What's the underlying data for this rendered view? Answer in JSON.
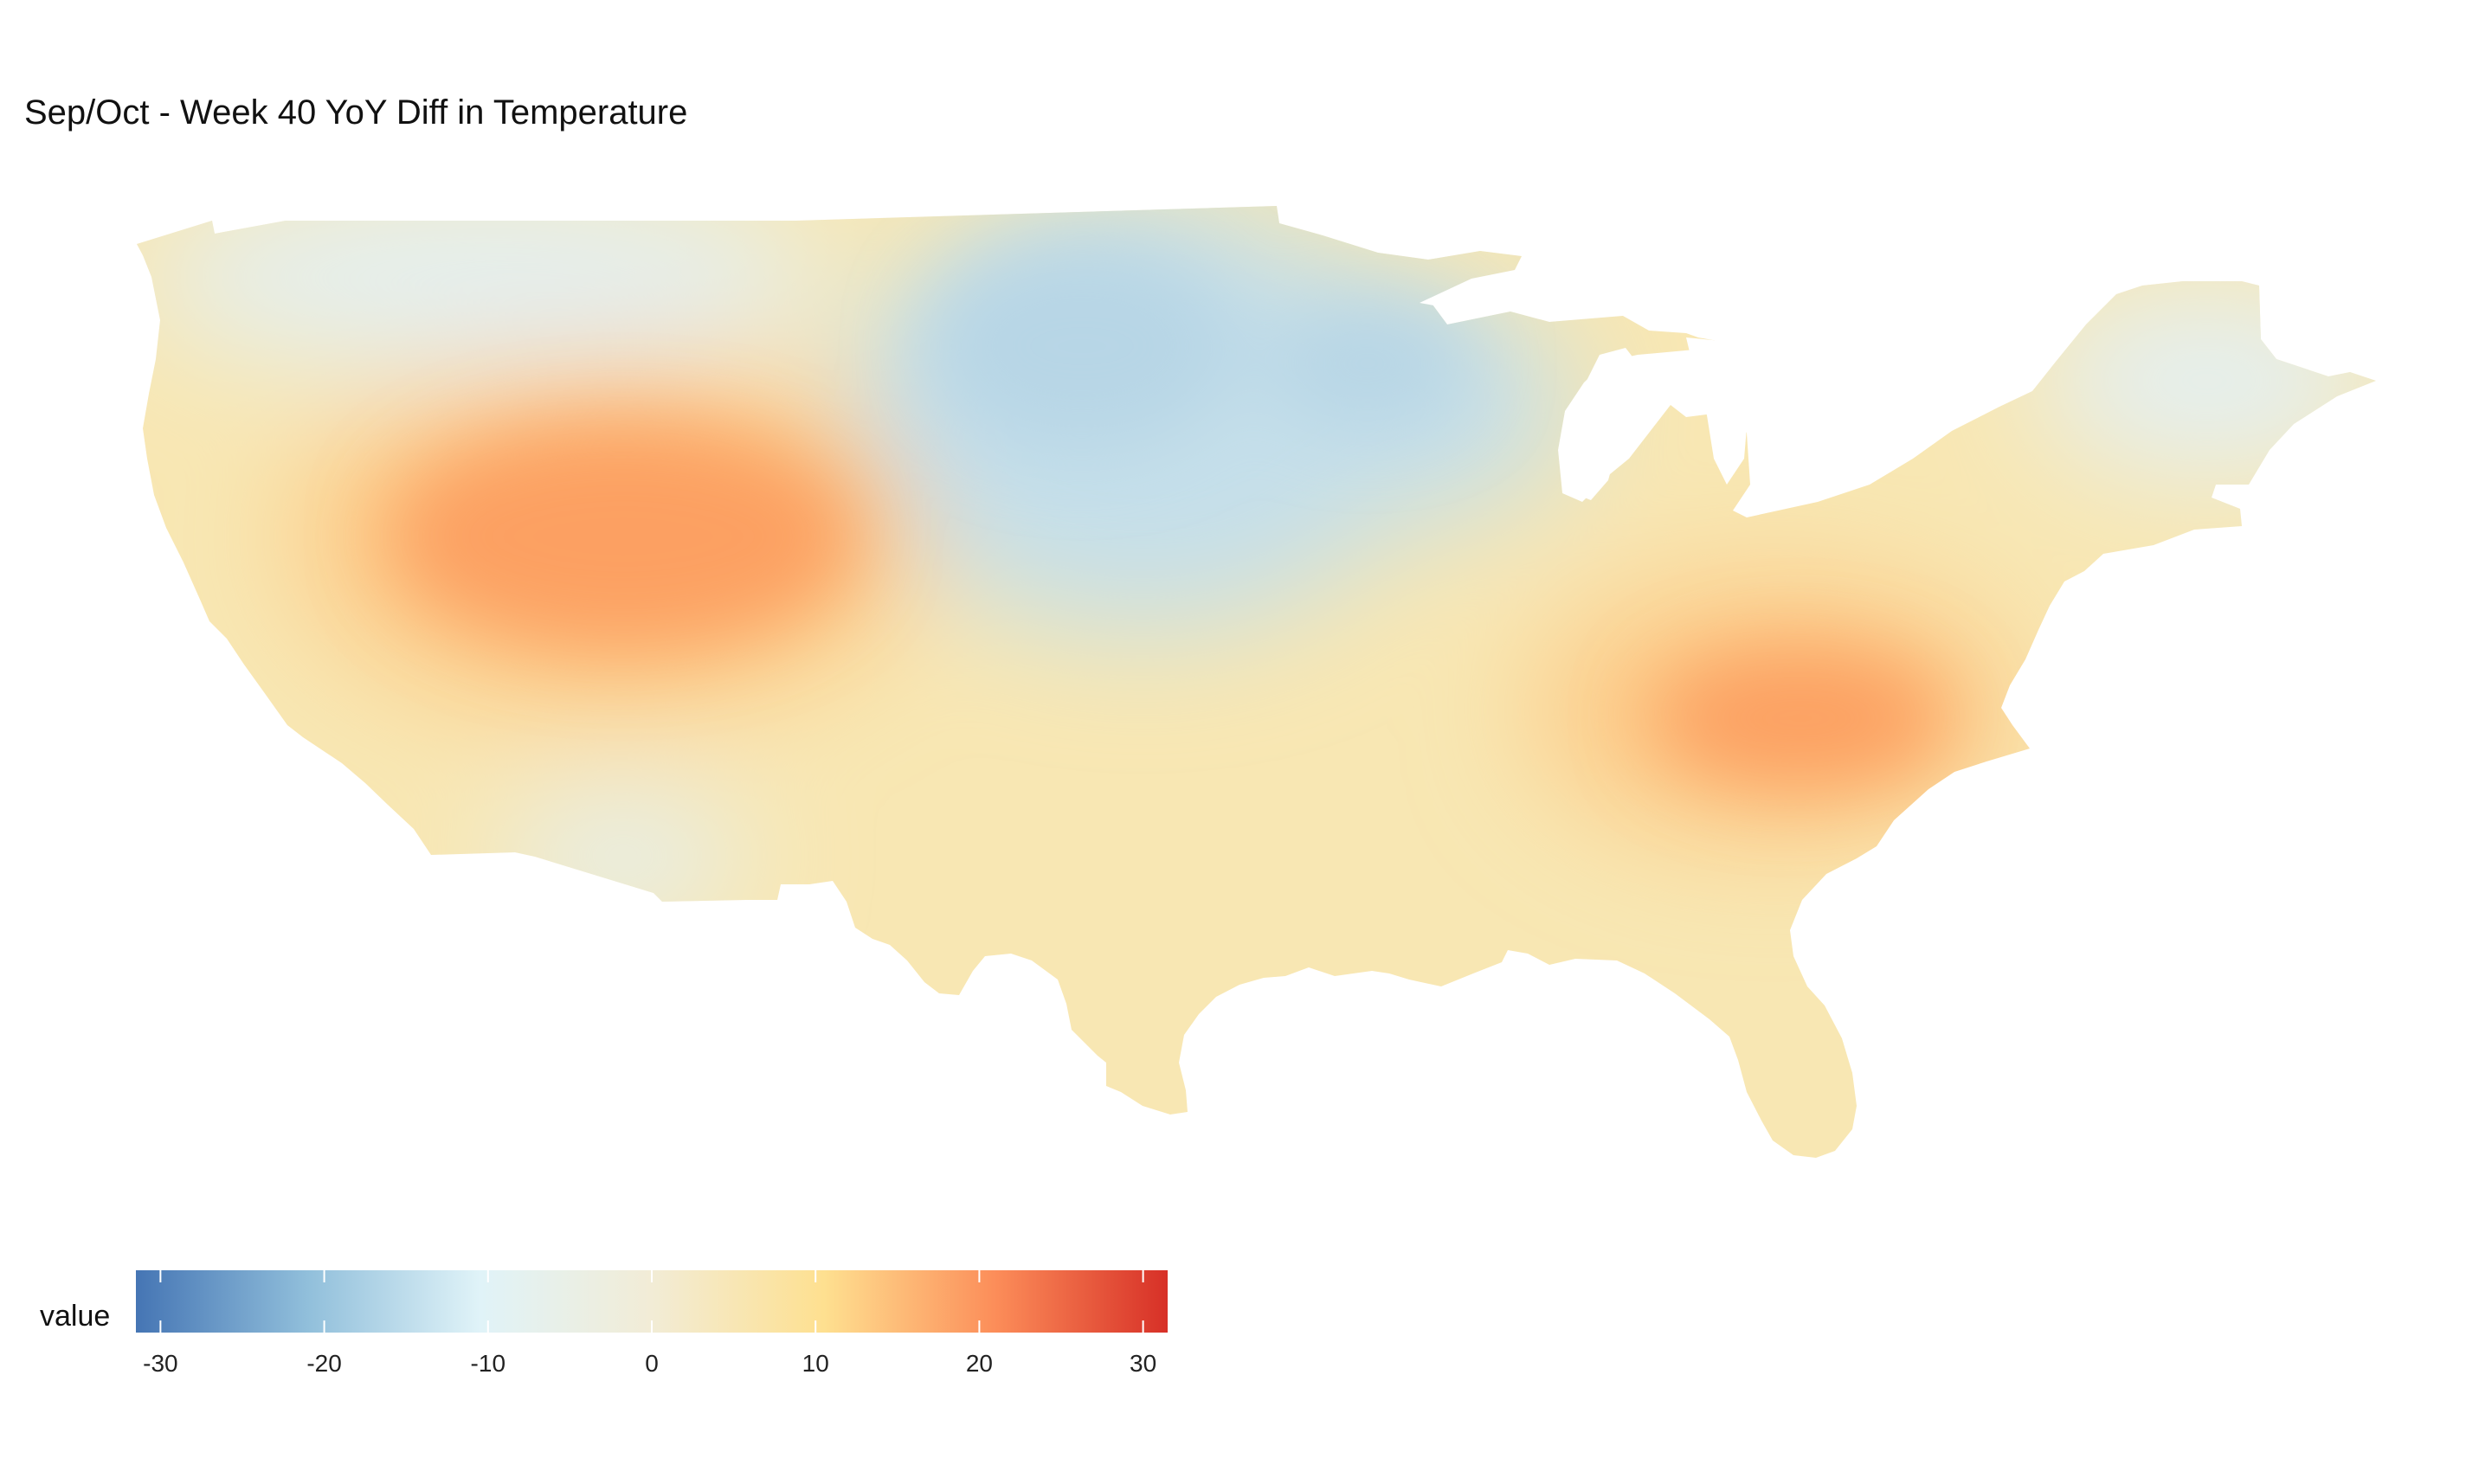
{
  "title": "Sep/Oct - Week 40 YoY Diff in Temperature",
  "legend": {
    "label": "value",
    "min": -31.5,
    "max": 31.5,
    "ticks": [
      "-30",
      "-20",
      "-10",
      "0",
      "10",
      "20",
      "30"
    ],
    "tick_values": [
      -30,
      -20,
      -10,
      0,
      10,
      20,
      30
    ],
    "palette": [
      "#4575b4",
      "#91bfdb",
      "#e0f3f8",
      "#f2ecd6",
      "#fee090",
      "#fc8d59",
      "#d73027"
    ]
  },
  "map": {
    "region": "Contiguous United States",
    "fill_colors": {
      "base": "#f8e7b3",
      "warm": "#fdc985",
      "hot": "#fca062",
      "cool": "#e4eff0",
      "cold": "#c5dfea",
      "coldest": "#b7d6e6",
      "water": "#ffffff"
    }
  }
}
